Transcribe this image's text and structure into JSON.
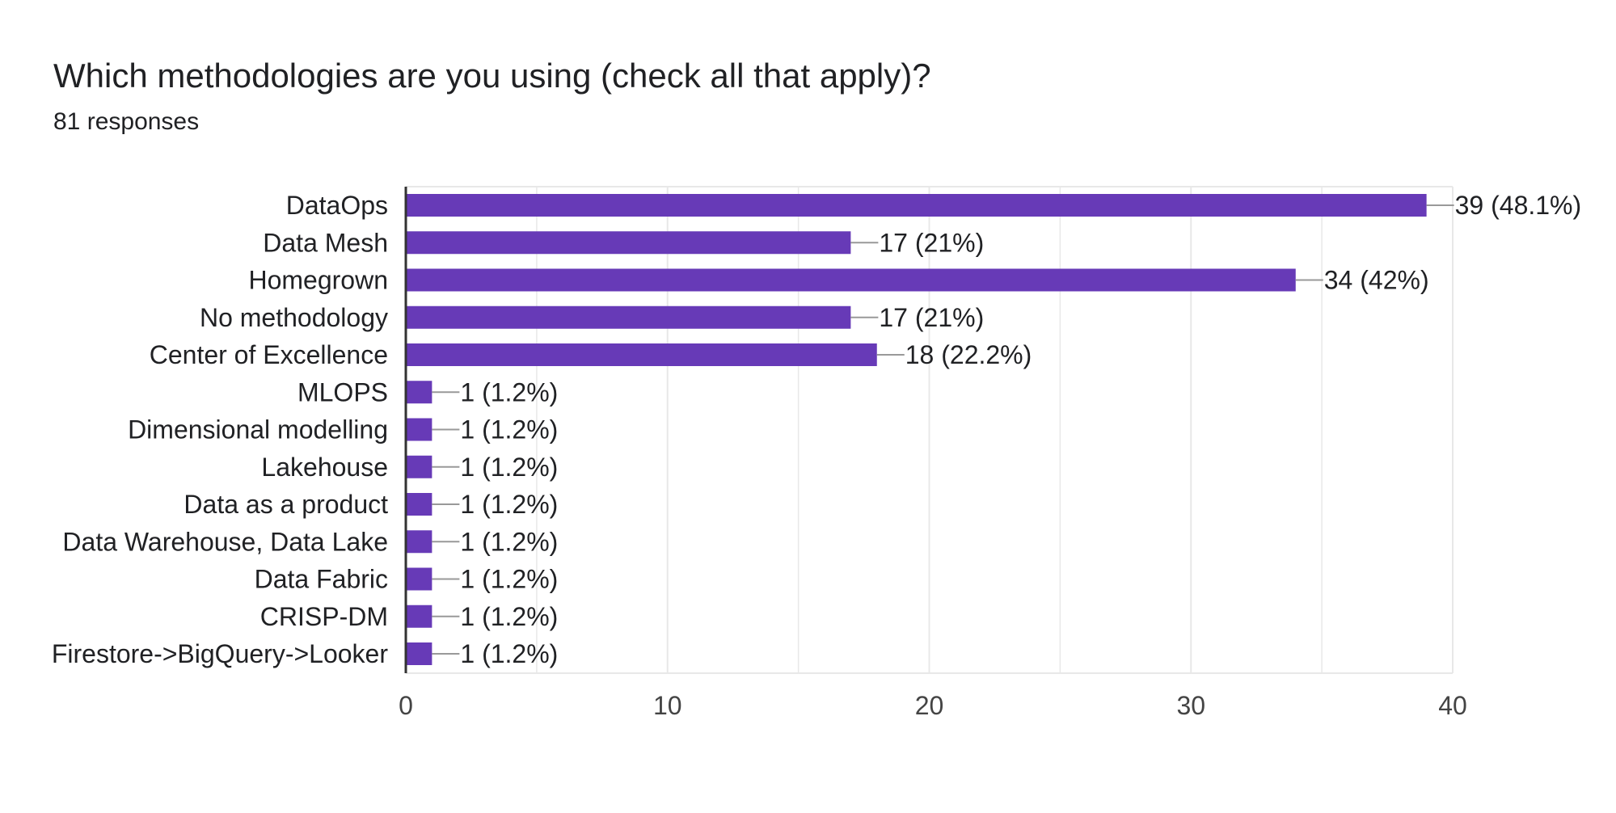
{
  "question": {
    "title": "Which methodologies are you using (check all that apply)?",
    "responses": "81 responses"
  },
  "colors": {
    "bar": "#673ab7",
    "leader": "#999999",
    "grid": "#e8e8e8",
    "axis": "#333333"
  },
  "chart_data": {
    "type": "bar",
    "orientation": "horizontal",
    "title": "",
    "xlabel": "",
    "ylabel": "",
    "xlim": [
      0,
      40
    ],
    "x_ticks": [
      0,
      10,
      20,
      30,
      40
    ],
    "grid": true,
    "categories": [
      "DataOps",
      "Data Mesh",
      "Homegrown",
      "No methodology",
      "Center of Excellence",
      "MLOPS",
      "Dimensional modelling",
      "Lakehouse",
      "Data as a product",
      "Data Warehouse, Data Lake",
      "Data Fabric",
      "CRISP-DM",
      "Firestore->BigQuery->Looker"
    ],
    "values": [
      39,
      17,
      34,
      17,
      18,
      1,
      1,
      1,
      1,
      1,
      1,
      1,
      1
    ],
    "data_labels": [
      "39 (48.1%)",
      "17 (21%)",
      "34 (42%)",
      "17 (21%)",
      "18 (22.2%)",
      "1 (1.2%)",
      "1 (1.2%)",
      "1 (1.2%)",
      "1 (1.2%)",
      "1 (1.2%)",
      "1 (1.2%)",
      "1 (1.2%)",
      "1 (1.2%)"
    ]
  }
}
